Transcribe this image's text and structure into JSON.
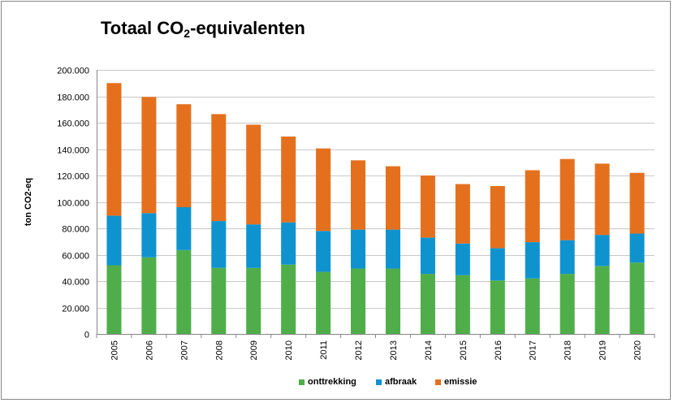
{
  "chart_data": {
    "type": "bar",
    "stacked": true,
    "title_main": "Totaal CO",
    "title_sub": "2",
    "title_rest": "-equivalenten",
    "xlabel": "",
    "ylabel": "ton CO2-eq",
    "ylim": [
      0,
      200000
    ],
    "ytick_values": [
      0,
      20000,
      40000,
      60000,
      80000,
      100000,
      120000,
      140000,
      160000,
      180000,
      200000
    ],
    "ytick_labels": [
      "0",
      "20.000",
      "40.000",
      "60.000",
      "80.000",
      "100.000",
      "120.000",
      "140.000",
      "160.000",
      "180.000",
      "200.000"
    ],
    "grid": true,
    "legend_position": "bottom",
    "categories": [
      "2005",
      "2006",
      "2007",
      "2008",
      "2009",
      "2010",
      "2011",
      "2012",
      "2013",
      "2014",
      "2015",
      "2016",
      "2017",
      "2018",
      "2019",
      "2020"
    ],
    "series": [
      {
        "name": "onttrekking",
        "color": "#4fae4a",
        "values": [
          52000,
          58000,
          63500,
          50000,
          50000,
          52500,
          47000,
          49500,
          49500,
          45500,
          44500,
          40500,
          42000,
          45500,
          51500,
          54000
        ]
      },
      {
        "name": "afbraak",
        "color": "#0f93cf",
        "values": [
          37500,
          33500,
          32500,
          35500,
          33000,
          32000,
          31000,
          29500,
          29500,
          27500,
          24000,
          24500,
          27500,
          25500,
          23500,
          22000
        ]
      },
      {
        "name": "emissie",
        "color": "#e4701e",
        "values": [
          100500,
          88000,
          78000,
          81000,
          75500,
          65000,
          62500,
          52500,
          48000,
          47000,
          45000,
          47000,
          54500,
          61500,
          54000,
          46000
        ]
      }
    ]
  }
}
